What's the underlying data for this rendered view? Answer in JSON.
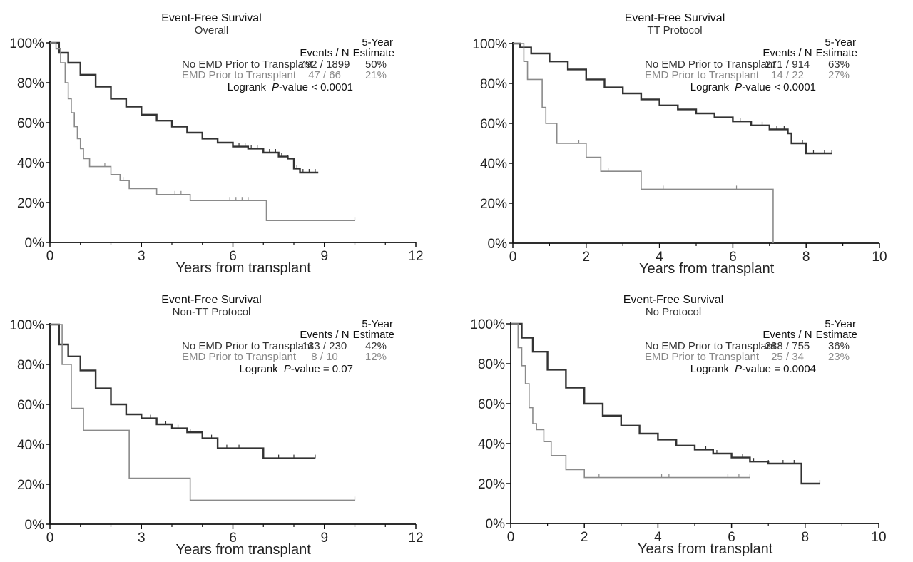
{
  "chart_data": [
    {
      "type": "line",
      "title": "Event-Free Survival",
      "subtitle": "Overall",
      "xlabel": "Years from transplant",
      "xlim": [
        0,
        12
      ],
      "xticks": [
        0,
        3,
        6,
        9,
        12
      ],
      "ylim": [
        0,
        100
      ],
      "yticks": [
        0,
        20,
        40,
        60,
        80,
        100
      ],
      "ytick_suffix": "%",
      "table_headers": {
        "events": "Events / N",
        "estimate_line1": "5-Year",
        "estimate_line2": "Estimate"
      },
      "series": [
        {
          "name": "No EMD Prior to Transplant",
          "color": "#333333",
          "events_n": "792 / 1899",
          "estimate": "50%",
          "x": [
            0,
            0.3,
            0.6,
            1,
            1.5,
            2,
            2.5,
            3,
            3.5,
            4,
            4.5,
            5,
            5.5,
            6,
            6.5,
            7,
            7.5,
            7.8,
            8,
            8.2,
            8.8
          ],
          "y": [
            100,
            95,
            90,
            84,
            78,
            72,
            68,
            64,
            61,
            58,
            55,
            52,
            50,
            48,
            47,
            45,
            43,
            42,
            37,
            35,
            35
          ],
          "censor_x": [
            6.0,
            6.2,
            6.4,
            6.6,
            6.8,
            7.0,
            7.2,
            7.4,
            7.6,
            7.8,
            8.1,
            8.3,
            8.5,
            8.7
          ]
        },
        {
          "name": "EMD Prior to Transplant",
          "color": "#8a8a8a",
          "events_n": "47 / 66",
          "estimate": "21%",
          "x": [
            0,
            0.2,
            0.35,
            0.5,
            0.6,
            0.7,
            0.8,
            0.9,
            1.0,
            1.1,
            1.3,
            1.6,
            2.0,
            2.3,
            2.6,
            3.5,
            4.6,
            7.1,
            10.0
          ],
          "y": [
            100,
            97,
            90,
            80,
            72,
            65,
            58,
            52,
            47,
            42,
            38,
            38,
            34,
            31,
            27,
            24,
            21,
            11,
            11
          ],
          "censor_x": [
            1.8,
            2.4,
            4.1,
            4.3,
            5.9,
            6.1,
            6.3,
            6.5,
            10.0
          ]
        }
      ],
      "logrank_label": "Logrank",
      "logrank_p": "P",
      "logrank_value": "-value < 0.0001"
    },
    {
      "type": "line",
      "title": "Event-Free Survival",
      "subtitle": "TT Protocol",
      "xlabel": "Years from transplant",
      "xlim": [
        0,
        10
      ],
      "xticks": [
        0,
        2,
        4,
        6,
        8,
        10
      ],
      "ylim": [
        0,
        100
      ],
      "yticks": [
        0,
        20,
        40,
        60,
        80,
        100
      ],
      "ytick_suffix": "%",
      "table_headers": {
        "events": "Events / N",
        "estimate_line1": "5-Year",
        "estimate_line2": "Estimate"
      },
      "series": [
        {
          "name": "No EMD Prior to Transplant",
          "color": "#333333",
          "events_n": "271 / 914",
          "estimate": "63%",
          "x": [
            0,
            0.2,
            0.5,
            1,
            1.5,
            2,
            2.5,
            3,
            3.5,
            4,
            4.5,
            5,
            5.5,
            6,
            6.5,
            7,
            7.5,
            7.6,
            8,
            8.7
          ],
          "y": [
            100,
            98,
            95,
            91,
            87,
            82,
            78,
            75,
            72,
            69,
            67,
            65,
            63,
            61,
            59,
            57,
            55,
            50,
            45,
            45
          ],
          "censor_x": [
            4.0,
            4.5,
            5.0,
            5.5,
            6.0,
            6.2,
            6.5,
            6.8,
            7.0,
            7.2,
            7.4,
            7.9,
            8.2,
            8.5,
            8.7
          ]
        },
        {
          "name": "EMD Prior to Transplant",
          "color": "#8a8a8a",
          "events_n": "14 / 22",
          "estimate": "27%",
          "x": [
            0,
            0.3,
            0.4,
            0.8,
            0.9,
            1.2,
            2.0,
            2.4,
            3.5,
            7.1,
            7.1
          ],
          "y": [
            100,
            91,
            82,
            68,
            60,
            50,
            43,
            36,
            27,
            27,
            0
          ],
          "censor_x": [
            0.4,
            1.8,
            2.6,
            4.1,
            6.1
          ]
        }
      ],
      "logrank_label": "Logrank",
      "logrank_p": "P",
      "logrank_value": "-value < 0.0001"
    },
    {
      "type": "line",
      "title": "Event-Free Survival",
      "subtitle": "Non-TT Protocol",
      "xlabel": "Years from transplant",
      "xlim": [
        0,
        12
      ],
      "xticks": [
        0,
        3,
        6,
        9,
        12
      ],
      "ylim": [
        0,
        100
      ],
      "yticks": [
        0,
        20,
        40,
        60,
        80,
        100
      ],
      "ytick_suffix": "%",
      "table_headers": {
        "events": "Events / N",
        "estimate_line1": "5-Year",
        "estimate_line2": "Estimate"
      },
      "series": [
        {
          "name": "No EMD Prior to Transplant",
          "color": "#333333",
          "events_n": "133 / 230",
          "estimate": "42%",
          "x": [
            0,
            0.3,
            0.6,
            1,
            1.5,
            2,
            2.5,
            3,
            3.5,
            4,
            4.5,
            5,
            5.5,
            6,
            7,
            8,
            8.7
          ],
          "y": [
            100,
            90,
            84,
            77,
            68,
            60,
            55,
            53,
            50,
            48,
            46,
            43,
            38,
            38,
            33,
            33,
            33
          ],
          "censor_x": [
            3.0,
            3.3,
            3.8,
            4.0,
            4.2,
            4.6,
            5.0,
            5.3,
            5.8,
            6.2,
            7.0,
            7.5,
            8.0,
            8.7
          ]
        },
        {
          "name": "EMD Prior to Transplant",
          "color": "#8a8a8a",
          "events_n": "8 / 10",
          "estimate": "12%",
          "x": [
            0,
            0.4,
            0.7,
            1.1,
            2.6,
            4.6,
            10.0
          ],
          "y": [
            100,
            80,
            58,
            47,
            23,
            12,
            12
          ],
          "censor_x": [
            10.0
          ]
        }
      ],
      "logrank_label": "Logrank",
      "logrank_p": "P",
      "logrank_value": "-value = 0.07"
    },
    {
      "type": "line",
      "title": "Event-Free Survival",
      "subtitle": "No Protocol",
      "xlabel": "Years from transplant",
      "xlim": [
        0,
        10
      ],
      "xticks": [
        0,
        2,
        4,
        6,
        8,
        10
      ],
      "ylim": [
        0,
        100
      ],
      "yticks": [
        0,
        20,
        40,
        60,
        80,
        100
      ],
      "ytick_suffix": "%",
      "table_headers": {
        "events": "Events / N",
        "estimate_line1": "5-Year",
        "estimate_line2": "Estimate"
      },
      "series": [
        {
          "name": "No EMD Prior to Transplant",
          "color": "#333333",
          "events_n": "388 / 755",
          "estimate": "36%",
          "x": [
            0,
            0.3,
            0.6,
            1,
            1.5,
            2,
            2.5,
            3,
            3.5,
            4,
            4.5,
            5,
            5.5,
            6,
            6.5,
            7,
            7.5,
            7.9,
            8.4
          ],
          "y": [
            100,
            93,
            86,
            77,
            68,
            60,
            54,
            49,
            45,
            42,
            39,
            37,
            35,
            33,
            31,
            30,
            30,
            20,
            20
          ],
          "censor_x": [
            3.0,
            3.5,
            4.0,
            4.5,
            5.0,
            5.3,
            5.6,
            6.0,
            6.3,
            6.6,
            7.0,
            7.4,
            7.7,
            8.4
          ]
        },
        {
          "name": "EMD Prior to Transplant",
          "color": "#8a8a8a",
          "events_n": "25 / 34",
          "estimate": "23%",
          "x": [
            0,
            0.2,
            0.3,
            0.4,
            0.5,
            0.6,
            0.7,
            0.9,
            1.1,
            1.5,
            2.0,
            6.5
          ],
          "y": [
            100,
            88,
            79,
            70,
            58,
            50,
            47,
            41,
            34,
            27,
            23,
            23
          ],
          "censor_x": [
            2.0,
            2.4,
            4.1,
            4.3,
            5.9,
            6.2,
            6.5
          ]
        }
      ],
      "logrank_label": "Logrank",
      "logrank_p": "P",
      "logrank_value": "-value = 0.0004"
    }
  ]
}
